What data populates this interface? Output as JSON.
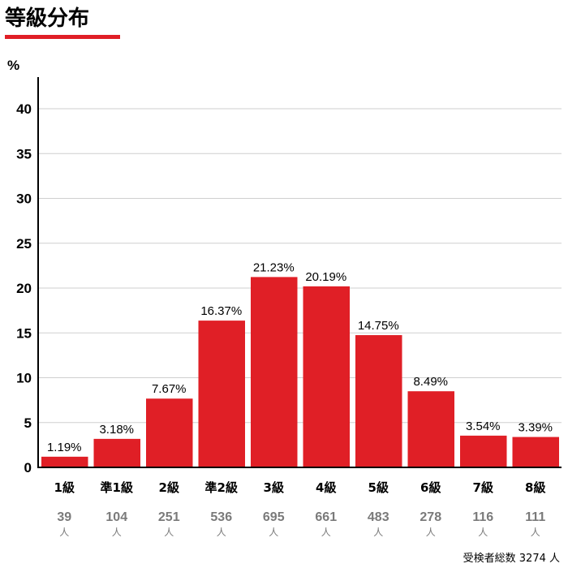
{
  "chart_data": {
    "type": "bar",
    "title": "等級分布",
    "ylabel": "%",
    "ylim": [
      0,
      45
    ],
    "yticks": [
      0,
      5,
      10,
      15,
      20,
      25,
      30,
      35,
      40
    ],
    "grid": true,
    "categories": [
      "1級",
      "準1級",
      "2級",
      "準2級",
      "3級",
      "4級",
      "5級",
      "6級",
      "7級",
      "8級"
    ],
    "values": [
      1.19,
      3.18,
      7.67,
      16.37,
      21.23,
      20.19,
      14.75,
      8.49,
      3.54,
      3.39
    ],
    "value_labels": [
      "1.19%",
      "3.18%",
      "7.67%",
      "16.37%",
      "21.23%",
      "20.19%",
      "14.75%",
      "8.49%",
      "3.54%",
      "3.39%"
    ],
    "counts": [
      39,
      104,
      251,
      536,
      695,
      661,
      483,
      278,
      116,
      111
    ],
    "count_unit": "人",
    "total_label": "受検者総数 3274 人",
    "colors": {
      "bar": "#e01f26",
      "title_underline": "#e01f26",
      "grid": "#cfcfcf",
      "axis": "#000000",
      "count_text": "#7a7a7a"
    }
  }
}
